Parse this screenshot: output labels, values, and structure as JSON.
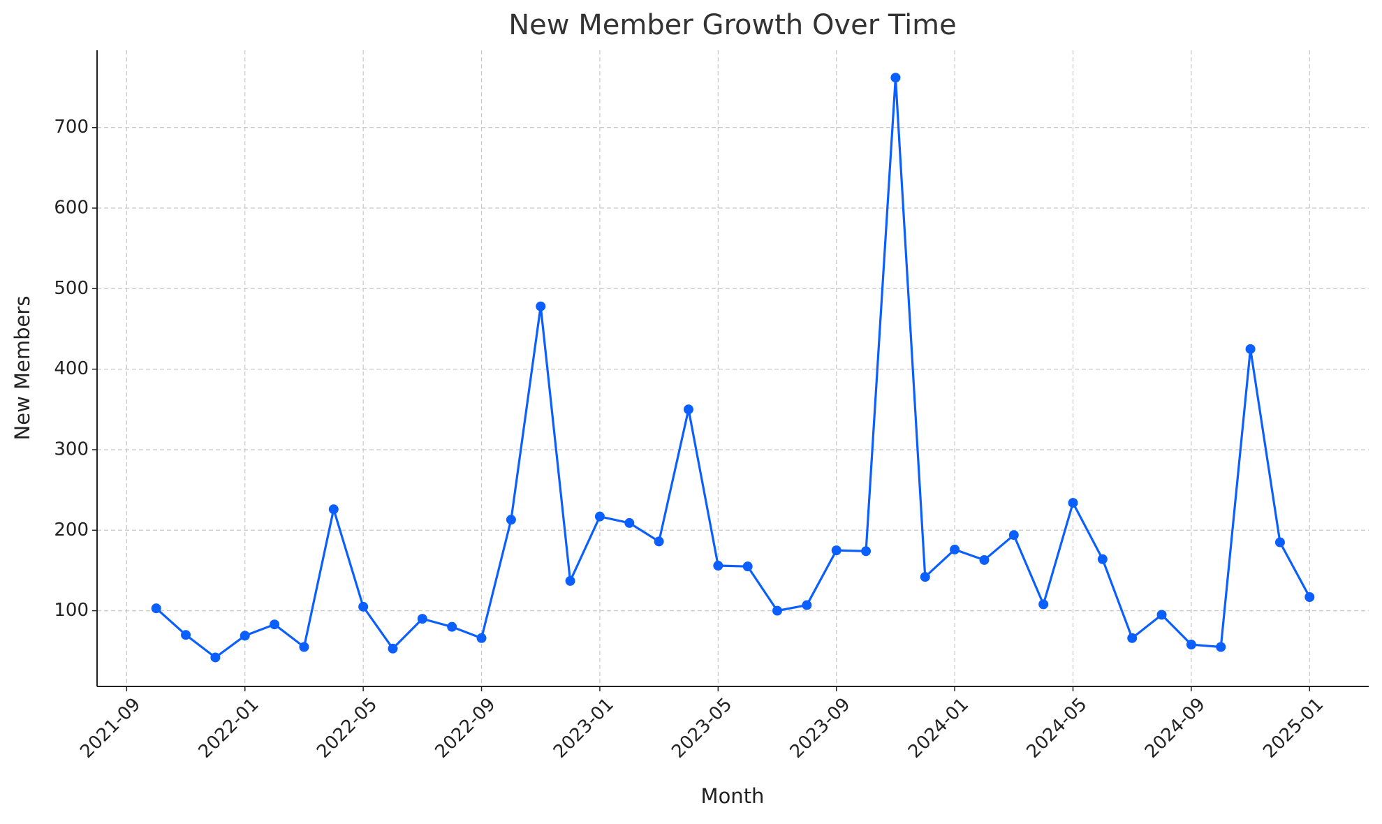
{
  "chart_data": {
    "type": "line",
    "title": "New Member Growth Over Time",
    "x_label": "Month",
    "y_label": "New Members",
    "x": [
      "2021-10",
      "2021-11",
      "2021-12",
      "2022-01",
      "2022-02",
      "2022-03",
      "2022-04",
      "2022-05",
      "2022-06",
      "2022-07",
      "2022-08",
      "2022-09",
      "2022-10",
      "2022-11",
      "2022-12",
      "2023-01",
      "2023-02",
      "2023-03",
      "2023-04",
      "2023-05",
      "2023-06",
      "2023-07",
      "2023-08",
      "2023-09",
      "2023-10",
      "2023-11",
      "2023-12",
      "2024-01",
      "2024-02",
      "2024-03",
      "2024-04",
      "2024-05",
      "2024-06",
      "2024-07",
      "2024-08",
      "2024-09",
      "2024-10",
      "2024-11",
      "2024-12",
      "2025-01"
    ],
    "values": [
      103,
      70,
      42,
      69,
      83,
      55,
      226,
      105,
      53,
      90,
      80,
      66,
      213,
      478,
      137,
      217,
      209,
      186,
      350,
      156,
      155,
      100,
      107,
      175,
      174,
      762,
      142,
      176,
      163,
      194,
      108,
      234,
      164,
      66,
      95,
      58,
      55,
      425,
      185,
      117
    ],
    "color": "#0b5fff",
    "xlim": [
      "2021-08",
      "2025-03"
    ],
    "xticks": [
      "2021-09",
      "2022-01",
      "2022-05",
      "2022-09",
      "2023-01",
      "2023-05",
      "2023-09",
      "2024-01",
      "2024-05",
      "2024-09",
      "2025-01"
    ],
    "ylim": [
      6,
      796
    ],
    "yticks": [
      100,
      200,
      300,
      400,
      500,
      600,
      700
    ],
    "grid": true
  }
}
